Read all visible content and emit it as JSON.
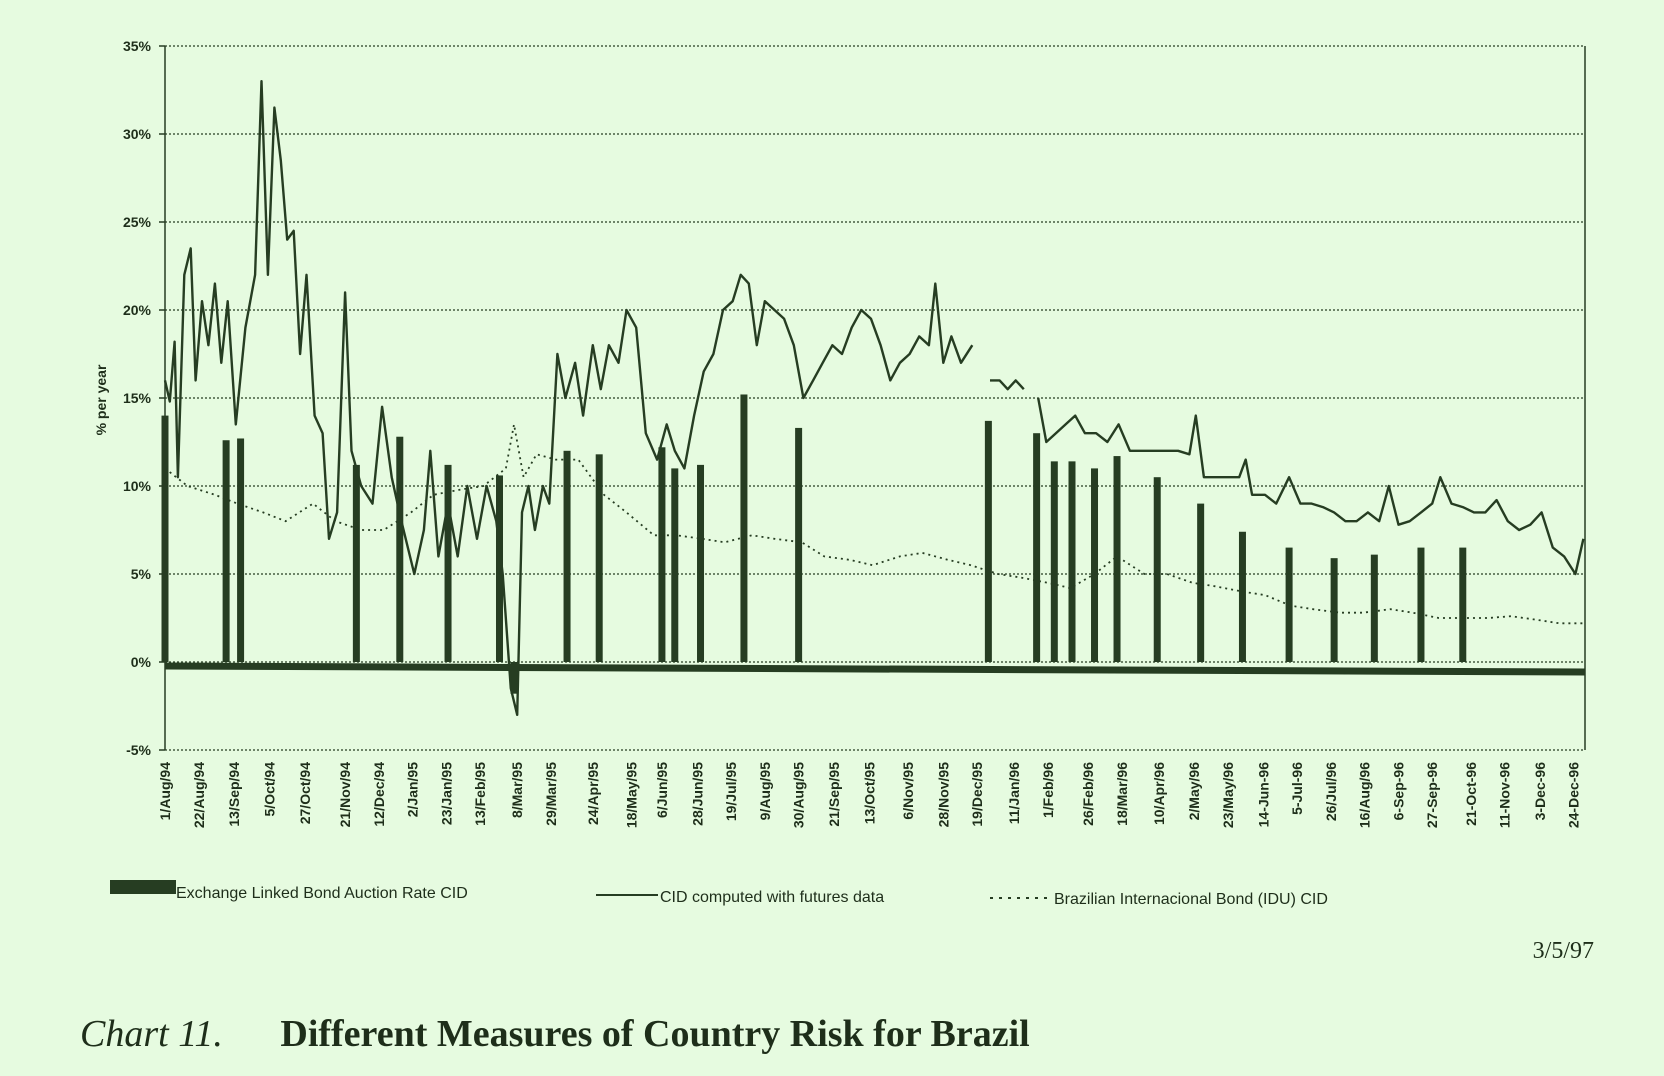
{
  "chart_data": {
    "type": "line",
    "title": "",
    "xlabel": "",
    "ylabel": "% per year",
    "ylim": [
      -5,
      35
    ],
    "yticks": [
      -5,
      0,
      5,
      10,
      15,
      20,
      25,
      30,
      35
    ],
    "ytick_labels": [
      "-5%",
      "0%",
      "5%",
      "10%",
      "15%",
      "20%",
      "25%",
      "30%",
      "35%"
    ],
    "grid": "horizontal",
    "legend_position": "bottom",
    "xlim": [
      "1994-08-01",
      "1996-12-31"
    ],
    "x_tick_labels": [
      "1/Aug/94",
      "22/Aug/94",
      "13/Sep/94",
      "5/Oct/94",
      "27/Oct/94",
      "21/Nov/94",
      "12/Dec/94",
      "2/Jan/95",
      "23/Jan/95",
      "13/Feb/95",
      "8/Mar/95",
      "29/Mar/95",
      "24/Apr/95",
      "18/May/95",
      "6/Jun/95",
      "28/Jun/95",
      "19/Jul/95",
      "9/Aug/95",
      "30/Aug/95",
      "21/Sep/95",
      "13/Oct/95",
      "6/Nov/95",
      "28/Nov/95",
      "19/Dec/95",
      "11/Jan/96",
      "1/Feb/96",
      "26/Feb/96",
      "18/Mar/96",
      "10/Apr/96",
      "2/May/96",
      "23/May/96",
      "14-Jun-96",
      "5-Jul-96",
      "26/Jul/96",
      "16/Aug/96",
      "6-Sep-96",
      "27-Sep-96",
      "21-Oct-96",
      "11-Nov-96",
      "3-Dec-96",
      "24-Dec-96"
    ],
    "x_tick_dates": [
      "1994-08-01",
      "1994-08-22",
      "1994-09-13",
      "1994-10-05",
      "1994-10-27",
      "1994-11-21",
      "1994-12-12",
      "1995-01-02",
      "1995-01-23",
      "1995-02-13",
      "1995-03-08",
      "1995-03-29",
      "1995-04-24",
      "1995-05-18",
      "1995-06-06",
      "1995-06-28",
      "1995-07-19",
      "1995-08-09",
      "1995-08-30",
      "1995-09-21",
      "1995-10-13",
      "1995-11-06",
      "1995-11-28",
      "1995-12-19",
      "1996-01-11",
      "1996-02-01",
      "1996-02-26",
      "1996-03-18",
      "1996-04-10",
      "1996-05-02",
      "1996-05-23",
      "1996-06-14",
      "1996-07-05",
      "1996-07-26",
      "1996-08-16",
      "1996-09-06",
      "1996-09-27",
      "1996-10-21",
      "1996-11-11",
      "1996-12-03",
      "1996-12-24"
    ],
    "series": [
      {
        "name": "Exchange Linked Bond Auction Rate CID",
        "type": "bar",
        "color": "#263d22",
        "points": [
          [
            "1994-08-01",
            14
          ],
          [
            "1994-09-08",
            12.6
          ],
          [
            "1994-09-17",
            12.7
          ],
          [
            "1994-11-28",
            11.2
          ],
          [
            "1994-12-25",
            12.8
          ],
          [
            "1995-01-24",
            11.2
          ],
          [
            "1995-02-25",
            10.6
          ],
          [
            "1995-03-06",
            -1.8
          ],
          [
            "1995-04-08",
            12
          ],
          [
            "1995-04-28",
            11.8
          ],
          [
            "1995-06-06",
            12.2
          ],
          [
            "1995-06-14",
            11
          ],
          [
            "1995-06-30",
            11.2
          ],
          [
            "1995-07-27",
            15.2
          ],
          [
            "1995-08-30",
            13.3
          ],
          [
            "1995-12-26",
            13.7
          ],
          [
            "1996-01-25",
            13
          ],
          [
            "1996-02-05",
            11.4
          ],
          [
            "1996-02-16",
            11.4
          ],
          [
            "1996-03-01",
            11
          ],
          [
            "1996-03-15",
            11.7
          ],
          [
            "1996-04-09",
            10.5
          ],
          [
            "1996-05-06",
            9
          ],
          [
            "1996-06-01",
            7.4
          ],
          [
            "1996-06-30",
            6.5
          ],
          [
            "1996-07-28",
            5.9
          ],
          [
            "1996-08-22",
            6.1
          ],
          [
            "1996-09-20",
            6.5
          ],
          [
            "1996-10-16",
            6.5
          ]
        ]
      },
      {
        "name": "CID computed with futures data",
        "type": "line",
        "color": "#263d22",
        "points": [
          [
            "1994-08-01",
            16
          ],
          [
            "1994-08-04",
            14.8
          ],
          [
            "1994-08-07",
            18.2
          ],
          [
            "1994-08-09",
            10.5
          ],
          [
            "1994-08-13",
            22
          ],
          [
            "1994-08-17",
            23.5
          ],
          [
            "1994-08-20",
            16
          ],
          [
            "1994-08-24",
            20.5
          ],
          [
            "1994-08-28",
            18
          ],
          [
            "1994-09-01",
            21.5
          ],
          [
            "1994-09-05",
            17
          ],
          [
            "1994-09-09",
            20.5
          ],
          [
            "1994-09-14",
            13.5
          ],
          [
            "1994-09-20",
            19
          ],
          [
            "1994-09-26",
            22
          ],
          [
            "1994-09-30",
            33
          ],
          [
            "1994-10-04",
            22
          ],
          [
            "1994-10-08",
            31.5
          ],
          [
            "1994-10-12",
            28.5
          ],
          [
            "1994-10-16",
            24
          ],
          [
            "1994-10-20",
            24.5
          ],
          [
            "1994-10-24",
            17.5
          ],
          [
            "1994-10-28",
            22
          ],
          [
            "1994-11-02",
            14
          ],
          [
            "1994-11-07",
            13
          ],
          [
            "1994-11-11",
            7
          ],
          [
            "1994-11-16",
            8.5
          ],
          [
            "1994-11-21",
            21
          ],
          [
            "1994-11-25",
            12
          ],
          [
            "1994-12-01",
            10
          ],
          [
            "1994-12-08",
            9
          ],
          [
            "1994-12-14",
            14.5
          ],
          [
            "1994-12-20",
            10.5
          ],
          [
            "1994-12-26",
            8
          ],
          [
            "1995-01-03",
            5
          ],
          [
            "1995-01-09",
            7.5
          ],
          [
            "1995-01-13",
            12
          ],
          [
            "1995-01-18",
            6
          ],
          [
            "1995-01-24",
            9
          ],
          [
            "1995-01-30",
            6
          ],
          [
            "1995-02-05",
            10
          ],
          [
            "1995-02-11",
            7
          ],
          [
            "1995-02-17",
            10
          ],
          [
            "1995-02-23",
            8
          ],
          [
            "1995-02-27",
            5
          ],
          [
            "1995-03-04",
            -1.5
          ],
          [
            "1995-03-08",
            -3
          ],
          [
            "1995-03-11",
            8.5
          ],
          [
            "1995-03-15",
            10
          ],
          [
            "1995-03-19",
            7.5
          ],
          [
            "1995-03-24",
            10
          ],
          [
            "1995-03-28",
            9
          ],
          [
            "1995-04-02",
            17.5
          ],
          [
            "1995-04-07",
            15
          ],
          [
            "1995-04-13",
            17
          ],
          [
            "1995-04-18",
            14
          ],
          [
            "1995-04-24",
            18
          ],
          [
            "1995-04-29",
            15.5
          ],
          [
            "1995-05-04",
            18
          ],
          [
            "1995-05-10",
            17
          ],
          [
            "1995-05-15",
            20
          ],
          [
            "1995-05-21",
            19
          ],
          [
            "1995-05-27",
            13
          ],
          [
            "1995-06-03",
            11.5
          ],
          [
            "1995-06-09",
            13.5
          ],
          [
            "1995-06-14",
            12
          ],
          [
            "1995-06-20",
            11
          ],
          [
            "1995-06-26",
            14
          ],
          [
            "1995-07-02",
            16.5
          ],
          [
            "1995-07-08",
            17.5
          ],
          [
            "1995-07-14",
            20
          ],
          [
            "1995-07-20",
            20.5
          ],
          [
            "1995-07-25",
            22
          ],
          [
            "1995-07-30",
            21.5
          ],
          [
            "1995-08-04",
            18
          ],
          [
            "1995-08-09",
            20.5
          ],
          [
            "1995-08-15",
            20
          ],
          [
            "1995-08-21",
            19.5
          ],
          [
            "1995-08-27",
            18
          ],
          [
            "1995-09-02",
            15
          ],
          [
            "1995-09-08",
            16
          ],
          [
            "1995-09-14",
            17
          ],
          [
            "1995-09-20",
            18
          ],
          [
            "1995-09-26",
            17.5
          ],
          [
            "1995-10-02",
            19
          ],
          [
            "1995-10-08",
            20
          ],
          [
            "1995-10-14",
            19.5
          ],
          [
            "1995-10-20",
            18
          ],
          [
            "1995-10-26",
            16
          ],
          [
            "1995-11-01",
            17
          ],
          [
            "1995-11-07",
            17.5
          ],
          [
            "1995-11-13",
            18.5
          ],
          [
            "1995-11-19",
            18
          ],
          [
            "1995-11-23",
            21.5
          ],
          [
            "1995-11-28",
            17
          ],
          [
            "1995-12-03",
            18.5
          ],
          [
            "1995-12-09",
            17
          ],
          [
            "1995-12-16",
            18
          ],
          null,
          [
            "1995-12-27",
            16
          ],
          [
            "1996-01-02",
            16
          ],
          [
            "1996-01-07",
            15.5
          ],
          [
            "1996-01-12",
            16
          ],
          [
            "1996-01-17",
            15.5
          ],
          null,
          [
            "1996-01-26",
            15
          ],
          [
            "1996-01-31",
            12.5
          ],
          [
            "1996-02-06",
            13
          ],
          [
            "1996-02-12",
            13.5
          ],
          [
            "1996-02-18",
            14
          ],
          [
            "1996-02-24",
            13
          ],
          [
            "1996-03-02",
            13
          ],
          [
            "1996-03-09",
            12.5
          ],
          [
            "1996-03-16",
            13.5
          ],
          [
            "1996-03-23",
            12
          ],
          [
            "1996-03-31",
            12
          ],
          [
            "1996-04-08",
            12
          ],
          [
            "1996-04-15",
            12
          ],
          [
            "1996-04-22",
            12
          ],
          [
            "1996-04-29",
            11.8
          ],
          [
            "1996-05-03",
            14
          ],
          [
            "1996-05-08",
            10.5
          ],
          [
            "1996-05-15",
            10.5
          ],
          [
            "1996-05-22",
            10.5
          ],
          [
            "1996-05-30",
            10.5
          ],
          [
            "1996-06-03",
            11.5
          ],
          [
            "1996-06-07",
            9.5
          ],
          [
            "1996-06-15",
            9.5
          ],
          [
            "1996-06-22",
            9
          ],
          [
            "1996-06-30",
            10.5
          ],
          [
            "1996-07-07",
            9
          ],
          [
            "1996-07-14",
            9
          ],
          [
            "1996-07-21",
            8.8
          ],
          [
            "1996-07-28",
            8.5
          ],
          [
            "1996-08-04",
            8
          ],
          [
            "1996-08-11",
            8
          ],
          [
            "1996-08-18",
            8.5
          ],
          [
            "1996-08-25",
            8
          ],
          [
            "1996-08-31",
            10
          ],
          [
            "1996-09-06",
            7.8
          ],
          [
            "1996-09-13",
            8
          ],
          [
            "1996-09-20",
            8.5
          ],
          [
            "1996-09-27",
            9
          ],
          [
            "1996-10-02",
            10.5
          ],
          [
            "1996-10-09",
            9
          ],
          [
            "1996-10-16",
            8.8
          ],
          [
            "1996-10-23",
            8.5
          ],
          [
            "1996-10-30",
            8.5
          ],
          [
            "1996-11-06",
            9.2
          ],
          [
            "1996-11-13",
            8
          ],
          [
            "1996-11-20",
            7.5
          ],
          [
            "1996-11-27",
            7.8
          ],
          [
            "1996-12-04",
            8.5
          ],
          [
            "1996-12-11",
            6.5
          ],
          [
            "1996-12-18",
            6
          ],
          [
            "1996-12-25",
            5
          ],
          [
            "1996-12-30",
            7
          ]
        ]
      },
      {
        "name": "Brazilian Internacional Bond (IDU) CID",
        "type": "line",
        "style": "dotted",
        "color": "#263d22",
        "points": [
          [
            "1994-08-01",
            11
          ],
          [
            "1994-08-15",
            10
          ],
          [
            "1994-09-01",
            9.5
          ],
          [
            "1994-09-15",
            9
          ],
          [
            "1994-10-01",
            8.5
          ],
          [
            "1994-10-15",
            8
          ],
          [
            "1994-11-01",
            9
          ],
          [
            "1994-11-15",
            8
          ],
          [
            "1994-12-01",
            7.5
          ],
          [
            "1994-12-15",
            7.5
          ],
          [
            "1995-01-01",
            8.5
          ],
          [
            "1995-01-15",
            9.5
          ],
          [
            "1995-02-01",
            9.8
          ],
          [
            "1995-02-15",
            10
          ],
          [
            "1995-03-01",
            11
          ],
          [
            "1995-03-06",
            13.5
          ],
          [
            "1995-03-12",
            10.5
          ],
          [
            "1995-03-20",
            11.8
          ],
          [
            "1995-04-01",
            11.5
          ],
          [
            "1995-04-15",
            11.5
          ],
          [
            "1995-05-01",
            9.5
          ],
          [
            "1995-05-15",
            8.5
          ],
          [
            "1995-06-01",
            7.2
          ],
          [
            "1995-06-15",
            7.2
          ],
          [
            "1995-07-01",
            7
          ],
          [
            "1995-07-15",
            6.8
          ],
          [
            "1995-08-01",
            7.2
          ],
          [
            "1995-08-15",
            7
          ],
          [
            "1995-09-01",
            6.8
          ],
          [
            "1995-09-15",
            6
          ],
          [
            "1995-10-01",
            5.8
          ],
          [
            "1995-10-15",
            5.5
          ],
          [
            "1995-11-01",
            6
          ],
          [
            "1995-11-15",
            6.2
          ],
          [
            "1995-12-01",
            5.8
          ],
          [
            "1995-12-15",
            5.5
          ],
          [
            "1996-01-01",
            5
          ],
          [
            "1996-01-15",
            4.8
          ],
          [
            "1996-02-01",
            4.5
          ],
          [
            "1996-02-15",
            4.2
          ],
          [
            "1996-03-01",
            5
          ],
          [
            "1996-03-15",
            6
          ],
          [
            "1996-04-01",
            5
          ],
          [
            "1996-04-15",
            5
          ],
          [
            "1996-05-01",
            4.5
          ],
          [
            "1996-05-15",
            4.3
          ],
          [
            "1996-06-01",
            4
          ],
          [
            "1996-06-15",
            3.8
          ],
          [
            "1996-07-01",
            3.2
          ],
          [
            "1996-07-15",
            3
          ],
          [
            "1996-08-01",
            2.8
          ],
          [
            "1996-08-15",
            2.8
          ],
          [
            "1996-09-01",
            3
          ],
          [
            "1996-09-15",
            2.8
          ],
          [
            "1996-10-01",
            2.5
          ],
          [
            "1996-10-15",
            2.5
          ],
          [
            "1996-11-01",
            2.5
          ],
          [
            "1996-11-15",
            2.6
          ],
          [
            "1996-12-01",
            2.4
          ],
          [
            "1996-12-15",
            2.2
          ],
          [
            "1996-12-30",
            2.2
          ]
        ]
      }
    ]
  },
  "legend": {
    "items": [
      {
        "label": "Exchange Linked Bond Auction Rate CID",
        "style": "bar"
      },
      {
        "label": "CID computed with futures data",
        "style": "solid"
      },
      {
        "label": "Brazilian Internacional Bond (IDU) CID",
        "style": "dotted"
      }
    ]
  },
  "date_stamp": "3/5/97",
  "caption": {
    "label": "Chart 11.",
    "title": "Different Measures of Country Risk for Brazil"
  }
}
